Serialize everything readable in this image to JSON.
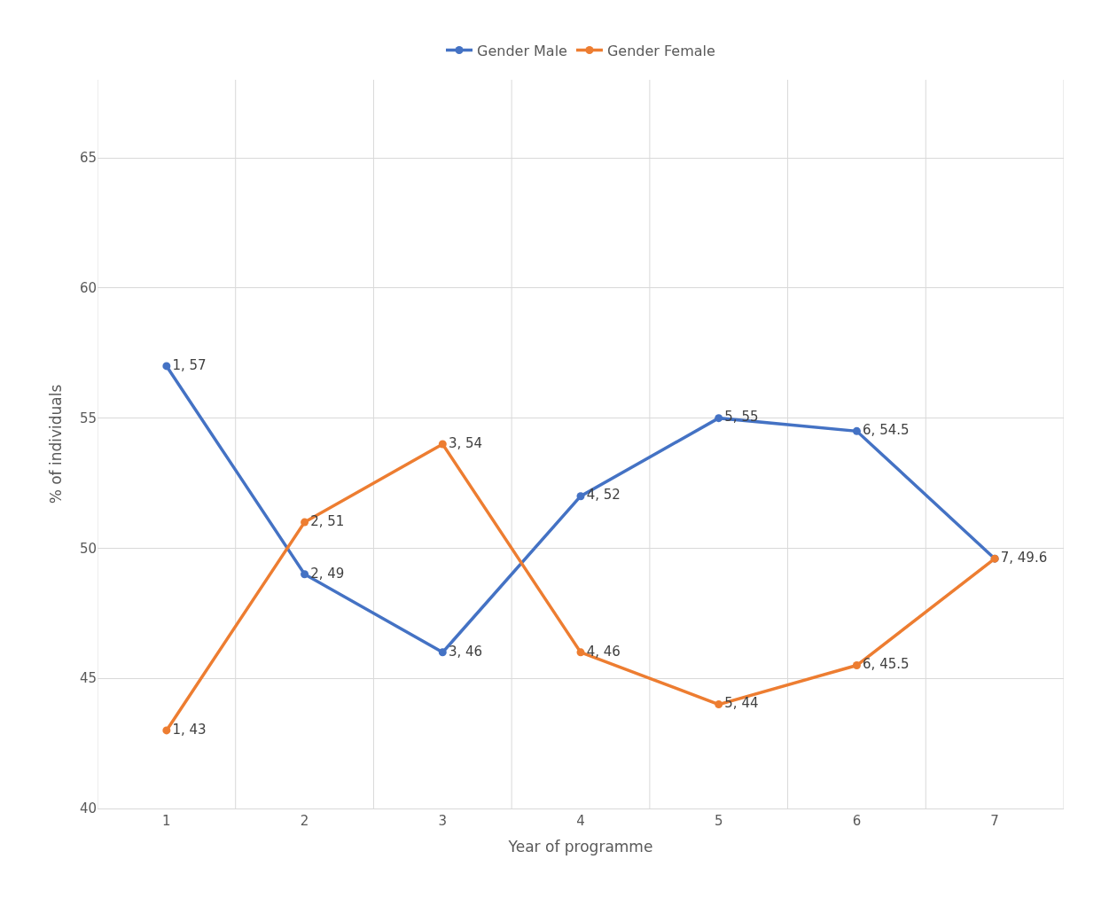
{
  "chart_data": {
    "type": "line",
    "xlabel": "Year of programme",
    "ylabel": "% of individuals",
    "categories": [
      "1",
      "2",
      "3",
      "4",
      "5",
      "6",
      "7"
    ],
    "series": [
      {
        "name": "Gender Male",
        "color": "#4472c4",
        "values": [
          57,
          49,
          46,
          52,
          55,
          54.5,
          49.6
        ],
        "value_labels": [
          "1, 57",
          "2, 49",
          "3, 46",
          "4, 52",
          "5, 55",
          "6, 54.5",
          "7, 49.6"
        ]
      },
      {
        "name": "Gender Female",
        "color": "#ed7d31",
        "values": [
          43,
          51,
          54,
          46,
          44,
          45.5,
          49.6
        ],
        "value_labels": [
          "1, 43",
          "2, 51",
          "3, 54",
          "4, 46",
          "5, 44",
          "6, 45.5",
          null
        ]
      }
    ],
    "ylim": [
      40,
      68
    ],
    "yticks": [
      40,
      45,
      50,
      55,
      60,
      65
    ],
    "grid": true,
    "legend": "top",
    "marker": "circle",
    "line_style": "solid"
  }
}
